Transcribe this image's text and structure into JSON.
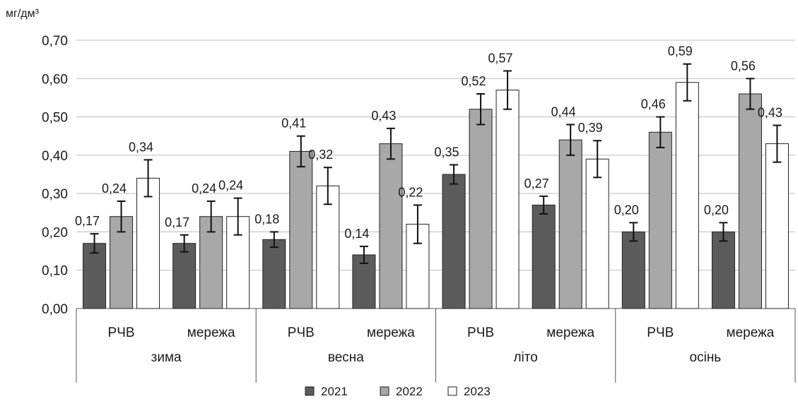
{
  "chart_data": {
    "type": "bar",
    "unit_label": "мг/дм³",
    "title": "",
    "xlabel": "",
    "ylabel": "",
    "ylim": [
      0,
      0.7
    ],
    "yticks": [
      0.0,
      0.1,
      0.2,
      0.3,
      0.4,
      0.5,
      0.6,
      0.7
    ],
    "ytick_labels": [
      "0,00",
      "0,10",
      "0,20",
      "0,30",
      "0,40",
      "0,50",
      "0,60",
      "0,70"
    ],
    "grid": true,
    "legend_position": "bottom",
    "groups": [
      {
        "label": "зима",
        "categories": [
          "РЧВ",
          "мережа"
        ]
      },
      {
        "label": "весна",
        "categories": [
          "РЧВ",
          "мережа"
        ]
      },
      {
        "label": "літо",
        "categories": [
          "РЧВ",
          "мережа"
        ]
      },
      {
        "label": "осінь",
        "categories": [
          "РЧВ",
          "мережа"
        ]
      }
    ],
    "series": [
      {
        "name": "2021",
        "color": "#5c5c5c",
        "values": [
          0.17,
          0.17,
          0.18,
          0.14,
          0.35,
          0.27,
          0.2,
          0.2
        ],
        "errors": [
          0.025,
          0.022,
          0.02,
          0.022,
          0.025,
          0.023,
          0.024,
          0.024
        ],
        "labels": [
          "0,17",
          "0,17",
          "0,18",
          "0,14",
          "0,35",
          "0,27",
          "0,20",
          "0,20"
        ]
      },
      {
        "name": "2022",
        "color": "#a8a8a8",
        "values": [
          0.24,
          0.24,
          0.41,
          0.43,
          0.52,
          0.44,
          0.46,
          0.56
        ],
        "errors": [
          0.04,
          0.04,
          0.04,
          0.04,
          0.04,
          0.04,
          0.04,
          0.04
        ],
        "labels": [
          "0,24",
          "0,24",
          "0,41",
          "0,43",
          "0,52",
          "0,44",
          "0,46",
          "0,56"
        ]
      },
      {
        "name": "2023",
        "color": "#ffffff",
        "values": [
          0.34,
          0.24,
          0.32,
          0.22,
          0.57,
          0.39,
          0.59,
          0.43
        ],
        "errors": [
          0.048,
          0.048,
          0.048,
          0.05,
          0.05,
          0.048,
          0.048,
          0.048
        ],
        "labels": [
          "0,34",
          "0,24",
          "0,32",
          "0,22",
          "0,57",
          "0,39",
          "0,59",
          "0,43"
        ]
      }
    ]
  }
}
